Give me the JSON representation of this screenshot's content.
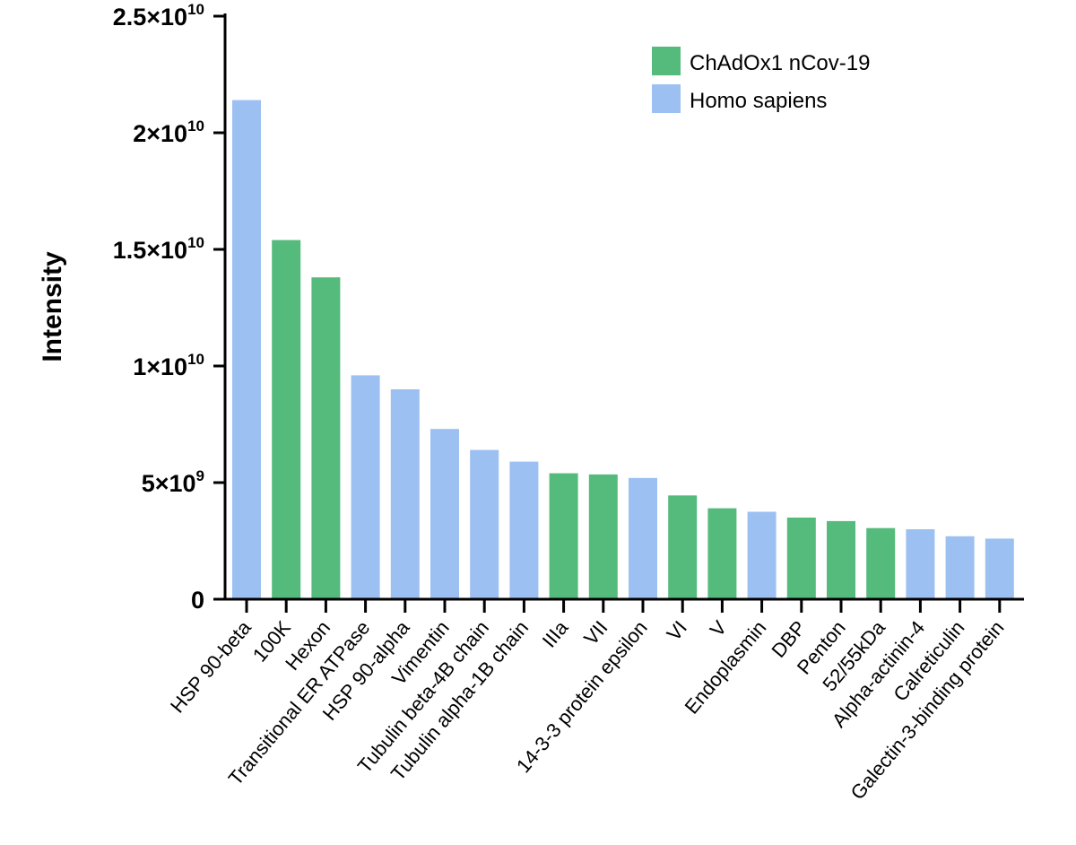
{
  "chart_data": {
    "type": "bar",
    "title": "",
    "xlabel": "",
    "ylabel": "Intensity",
    "ylim": [
      0,
      25000000000
    ],
    "grid": false,
    "legend_position": "top-right",
    "y_ticks": [
      {
        "value": 0,
        "base": "0",
        "exp": ""
      },
      {
        "value": 5000000000,
        "base": "5×10",
        "exp": "9"
      },
      {
        "value": 10000000000,
        "base": "1×10",
        "exp": "10"
      },
      {
        "value": 15000000000,
        "base": "1.5×10",
        "exp": "10"
      },
      {
        "value": 20000000000,
        "base": "2×10",
        "exp": "10"
      },
      {
        "value": 25000000000,
        "base": "2.5×10",
        "exp": "10"
      }
    ],
    "series": [
      {
        "name": "ChAdOx1 nCov-19",
        "color": "#55bb7c"
      },
      {
        "name": "Homo sapiens",
        "color": "#9cc0f2"
      }
    ],
    "categories": [
      "HSP 90-beta",
      "100K",
      "Hexon",
      "Transitional ER ATPase",
      "HSP 90-alpha",
      "Vimentin",
      "Tubulin beta-4B chain",
      "Tubulin alpha-1B chain",
      "IIIa",
      "VII",
      "14-3-3 protein epsilon",
      "VI",
      "V",
      "Endoplasmin",
      "DBP",
      "Penton",
      "52/55kDa",
      "Alpha-actinin-4",
      "Calreticulin",
      "Galectin-3-binding protein"
    ],
    "values": [
      21400000000,
      15400000000,
      13800000000,
      9600000000,
      9000000000,
      7300000000,
      6400000000,
      5900000000,
      5400000000,
      5350000000,
      5200000000,
      4450000000,
      3900000000,
      3750000000,
      3500000000,
      3350000000,
      3050000000,
      3000000000,
      2700000000,
      2600000000
    ],
    "series_index": [
      1,
      0,
      0,
      1,
      1,
      1,
      1,
      1,
      0,
      0,
      1,
      0,
      0,
      1,
      0,
      0,
      0,
      1,
      1,
      1
    ]
  }
}
